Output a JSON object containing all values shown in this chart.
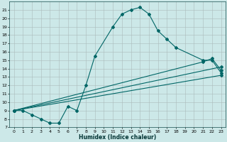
{
  "title": "",
  "xlabel": "Humidex (Indice chaleur)",
  "ylabel": "",
  "bg_color": "#cce8e8",
  "line_color": "#006666",
  "grid_color": "#aabbbb",
  "xlim": [
    -0.5,
    23.5
  ],
  "ylim": [
    7,
    22
  ],
  "xticks": [
    0,
    1,
    2,
    3,
    4,
    5,
    6,
    7,
    8,
    9,
    10,
    11,
    12,
    13,
    14,
    15,
    16,
    17,
    18,
    19,
    20,
    21,
    22,
    23
  ],
  "yticks": [
    7,
    8,
    9,
    10,
    11,
    12,
    13,
    14,
    15,
    16,
    17,
    18,
    19,
    20,
    21
  ],
  "curve1_x": [
    0,
    1,
    2,
    3,
    4,
    5,
    6,
    7,
    8,
    9,
    11,
    12,
    13,
    14,
    15,
    16,
    17,
    18,
    21,
    22,
    23
  ],
  "curve1_y": [
    9,
    9,
    8.5,
    8,
    7.5,
    7.5,
    9.5,
    9,
    12,
    15.5,
    19,
    20.5,
    21,
    21.3,
    20.5,
    18.5,
    17.5,
    16.5,
    15,
    15,
    13.5
  ],
  "line1_x": [
    0,
    21,
    22,
    23
  ],
  "line1_y": [
    9,
    14.8,
    15.2,
    13.8
  ],
  "line2_x": [
    0,
    23
  ],
  "line2_y": [
    9,
    14.2
  ],
  "line3_x": [
    0,
    23
  ],
  "line3_y": [
    9,
    13.2
  ]
}
